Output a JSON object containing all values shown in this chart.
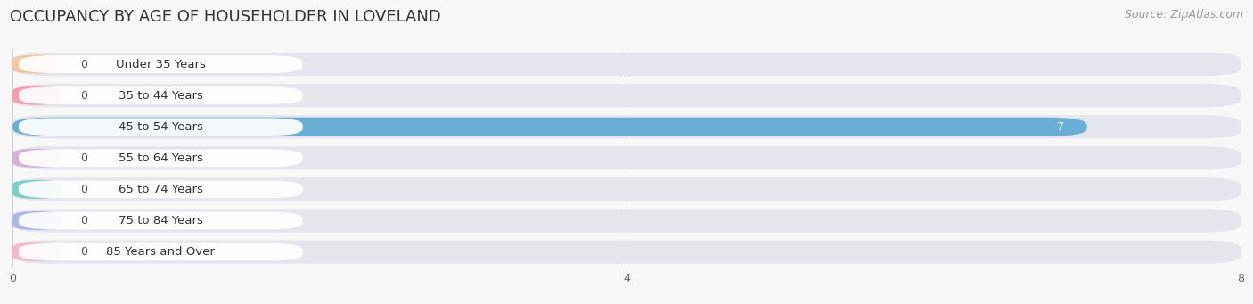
{
  "title": "OCCUPANCY BY AGE OF HOUSEHOLDER IN LOVELAND",
  "source": "Source: ZipAtlas.com",
  "categories": [
    "Under 35 Years",
    "35 to 44 Years",
    "45 to 54 Years",
    "55 to 64 Years",
    "65 to 74 Years",
    "75 to 84 Years",
    "85 Years and Over"
  ],
  "values": [
    0,
    0,
    7,
    0,
    0,
    0,
    0
  ],
  "bar_colors": [
    "#f5c5a0",
    "#f5a0b0",
    "#6aaed6",
    "#d4b0d8",
    "#7ecec8",
    "#aab8ec",
    "#f5b8cc"
  ],
  "xlim_max": 8,
  "xticks": [
    0,
    4,
    8
  ],
  "background_color": "#f7f7f7",
  "bar_bg_color": "#e5e5ed",
  "title_fontsize": 13,
  "cat_fontsize": 9.5,
  "val_fontsize": 9,
  "source_fontsize": 9
}
